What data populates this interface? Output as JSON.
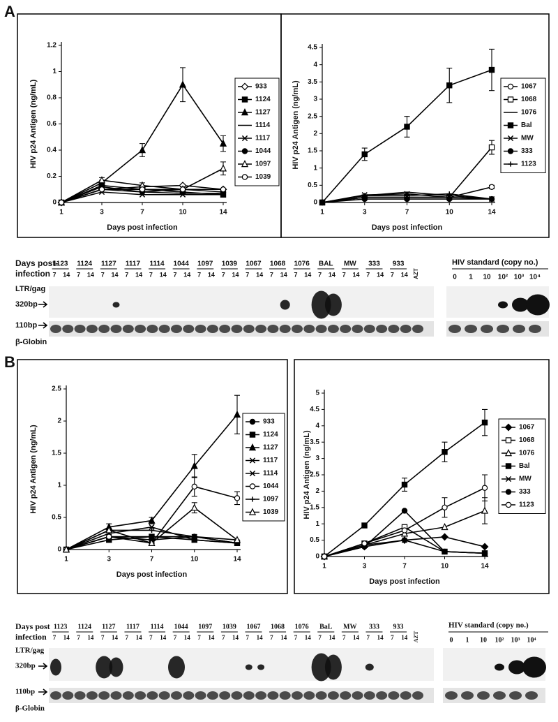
{
  "panels": [
    "A",
    "B"
  ],
  "chart_data": [
    {
      "type": "line",
      "y_label": "HIV p24 Antigen (ng/mL)",
      "x_label": "Days post infection",
      "categories": [
        "1",
        "3",
        "7",
        "10",
        "14"
      ],
      "ylim": [
        0,
        1.2
      ],
      "yticks": [
        0,
        0.2,
        0.4,
        0.6,
        0.8,
        1,
        1.2
      ],
      "series": [
        {
          "name": "933",
          "color": "#000000",
          "marker": "diamond-open",
          "values": [
            0,
            0.1,
            0.12,
            0.13,
            0.1
          ]
        },
        {
          "name": "1124",
          "color": "#000000",
          "marker": "square",
          "values": [
            0,
            0.13,
            0.1,
            0.08,
            0.06
          ]
        },
        {
          "name": "1127",
          "color": "#000000",
          "marker": "triangle",
          "values": [
            0,
            0.15,
            0.4,
            0.9,
            0.45
          ],
          "errors": [
            null,
            0.02,
            0.05,
            0.13,
            0.06
          ]
        },
        {
          "name": "1114",
          "color": "#000000",
          "marker": "none",
          "values": [
            0,
            0.12,
            0.08,
            0.07,
            0.07
          ]
        },
        {
          "name": "1117",
          "color": "#000000",
          "marker": "x",
          "values": [
            0,
            0.08,
            0.06,
            0.06,
            0.06
          ]
        },
        {
          "name": "1044",
          "color": "#000000",
          "marker": "circle",
          "values": [
            0,
            0.1,
            0.08,
            0.1,
            0.08
          ]
        },
        {
          "name": "1097",
          "color": "#000000",
          "marker": "triangle-open",
          "values": [
            0,
            0.17,
            0.13,
            0.1,
            0.26
          ],
          "errors": [
            null,
            0.02,
            0.02,
            0.02,
            0.05
          ]
        },
        {
          "name": "1039",
          "color": "#000000",
          "marker": "circle-open",
          "values": [
            0,
            0.1,
            0.1,
            0.1,
            0.1
          ]
        }
      ]
    },
    {
      "type": "line",
      "y_label": "HIV p24 Antigen (ng/mL)",
      "x_label": "Days post infection",
      "categories": [
        "1",
        "3",
        "7",
        "10",
        "14"
      ],
      "ylim": [
        0,
        4.5
      ],
      "yticks": [
        0,
        0.5,
        1,
        1.5,
        2,
        2.5,
        3,
        3.5,
        4,
        4.5
      ],
      "series": [
        {
          "name": "1067",
          "color": "#000000",
          "marker": "circle-open",
          "values": [
            0,
            0.15,
            0.15,
            0.15,
            0.45
          ],
          "errors": [
            null,
            null,
            null,
            null,
            0.05
          ]
        },
        {
          "name": "1068",
          "color": "#000000",
          "marker": "square-open",
          "values": [
            0,
            0.15,
            0.15,
            0.15,
            1.6
          ],
          "errors": [
            null,
            null,
            null,
            null,
            0.2
          ]
        },
        {
          "name": "1076",
          "color": "#000000",
          "marker": "none",
          "values": [
            0,
            0.2,
            0.3,
            0.2,
            0.1
          ]
        },
        {
          "name": "Bal",
          "color": "#000000",
          "marker": "square",
          "values": [
            0,
            1.4,
            2.2,
            3.4,
            3.85
          ],
          "errors": [
            null,
            0.18,
            0.3,
            0.5,
            0.6
          ]
        },
        {
          "name": "MW",
          "color": "#000000",
          "marker": "x",
          "values": [
            0,
            0.22,
            0.25,
            0.15,
            0.1
          ]
        },
        {
          "name": "333",
          "color": "#000000",
          "marker": "circle",
          "values": [
            0,
            0.1,
            0.1,
            0.1,
            0.1
          ]
        },
        {
          "name": "1123",
          "color": "#000000",
          "marker": "plus",
          "values": [
            0,
            0.2,
            0.2,
            0.25,
            0.1
          ]
        }
      ]
    },
    {
      "type": "line",
      "y_label": "HIV p24 Antigen (ng/mL)",
      "x_label": "Days post infection",
      "categories": [
        "1",
        "3",
        "7",
        "10",
        "14"
      ],
      "ylim": [
        0,
        2.5
      ],
      "yticks": [
        0,
        0.5,
        1,
        1.5,
        2,
        2.5
      ],
      "series": [
        {
          "name": "933",
          "color": "#000000",
          "marker": "circle",
          "values": [
            0,
            0.2,
            0.15,
            0.2,
            0.1
          ]
        },
        {
          "name": "1124",
          "color": "#000000",
          "marker": "square",
          "values": [
            0,
            0.15,
            0.2,
            0.15,
            0.1
          ]
        },
        {
          "name": "1127",
          "color": "#000000",
          "marker": "triangle",
          "values": [
            0,
            0.35,
            0.45,
            1.3,
            2.1
          ],
          "errors": [
            null,
            0.05,
            0.05,
            0.18,
            0.3
          ]
        },
        {
          "name": "1117",
          "color": "#000000",
          "marker": "x",
          "values": [
            0,
            0.2,
            0.2,
            0.2,
            0.1
          ]
        },
        {
          "name": "1114",
          "color": "#000000",
          "marker": "x",
          "values": [
            0,
            0.25,
            0.35,
            0.15,
            0.1
          ]
        },
        {
          "name": "1044",
          "color": "#000000",
          "marker": "circle-open",
          "values": [
            0,
            0.2,
            0.1,
            0.98,
            0.8
          ],
          "errors": [
            null,
            null,
            null,
            0.15,
            0.1
          ]
        },
        {
          "name": "1097",
          "color": "#000000",
          "marker": "plus",
          "values": [
            0,
            0.3,
            0.3,
            0.2,
            0.15
          ]
        },
        {
          "name": "1039",
          "color": "#000000",
          "marker": "triangle-open",
          "values": [
            0,
            0.3,
            0.1,
            0.65,
            0.15
          ],
          "errors": [
            null,
            null,
            null,
            0.08,
            null
          ]
        }
      ]
    },
    {
      "type": "line",
      "y_label": "HIV p24 Antigen (ng/mL)",
      "x_label": "Days post infection",
      "categories": [
        "1",
        "3",
        "7",
        "10",
        "14"
      ],
      "ylim": [
        0,
        5
      ],
      "yticks": [
        0,
        0.5,
        1,
        1.5,
        2,
        2.5,
        3,
        3.5,
        4,
        4.5,
        5
      ],
      "series": [
        {
          "name": "1067",
          "color": "#000000",
          "marker": "diamond",
          "values": [
            0,
            0.3,
            0.5,
            0.6,
            0.3
          ]
        },
        {
          "name": "1068",
          "color": "#000000",
          "marker": "square-open",
          "values": [
            0,
            0.4,
            0.9,
            0.15,
            0.1
          ]
        },
        {
          "name": "1076",
          "color": "#000000",
          "marker": "triangle-open",
          "values": [
            0,
            0.35,
            0.7,
            0.9,
            1.4
          ],
          "errors": [
            null,
            null,
            null,
            null,
            0.4
          ]
        },
        {
          "name": "Bal",
          "color": "#000000",
          "marker": "square",
          "values": [
            0,
            0.95,
            2.2,
            3.2,
            4.1
          ],
          "errors": [
            null,
            0.05,
            0.2,
            0.3,
            0.4
          ]
        },
        {
          "name": "MW",
          "color": "#000000",
          "marker": "x",
          "values": [
            0,
            0.35,
            0.5,
            0.15,
            0.1
          ]
        },
        {
          "name": "333",
          "color": "#000000",
          "marker": "circle",
          "values": [
            0,
            0.3,
            1.4,
            0.15,
            0.1
          ]
        },
        {
          "name": "1123",
          "color": "#000000",
          "marker": "circle-open",
          "values": [
            0,
            0.4,
            0.8,
            1.5,
            2.1
          ],
          "errors": [
            null,
            null,
            null,
            0.3,
            0.4
          ]
        }
      ]
    }
  ],
  "gels": [
    {
      "lanes": [
        "1123",
        "1124",
        "1127",
        "1117",
        "1114",
        "1044",
        "1097",
        "1039",
        "1067",
        "1068",
        "1076",
        "BAL",
        "MW",
        "333",
        "933"
      ],
      "control": "AZT",
      "days": [
        "7",
        "14"
      ],
      "days_label": [
        "Days post-",
        "infection"
      ],
      "target": "LTR/gag",
      "target_size": "320bp",
      "globin_size": "110bp",
      "globin": "β-Globin",
      "standard_title": "HIV standard (copy no.)",
      "standard_lanes": [
        "0",
        "1",
        "10",
        "10²",
        "10³",
        "10⁴"
      ]
    },
    {
      "lanes": [
        "1123",
        "1124",
        "1127",
        "1117",
        "1114",
        "1044",
        "1097",
        "1039",
        "1067",
        "1068",
        "1076",
        "BaL",
        "MW",
        "333",
        "933"
      ],
      "control": "AZT",
      "days": [
        "7",
        "14"
      ],
      "days_label": [
        "Days post",
        "infection"
      ],
      "target": "LTR/gag",
      "target_size": "320bp",
      "globin_size": "110bp",
      "globin": "β-Globin",
      "standard_title": "HIV standard (copy no.)",
      "standard_lanes": [
        "0",
        "1",
        "10",
        "10²",
        "10³",
        "10⁴"
      ]
    }
  ]
}
